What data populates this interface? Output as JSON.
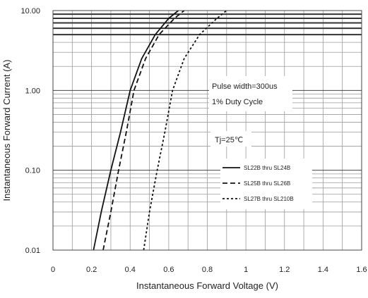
{
  "chart_data": {
    "type": "line",
    "title": "",
    "xlabel": "Instantaneous Forward Voltage (V)",
    "ylabel": "Instantaneous Forward Current (A)",
    "xlim": [
      0,
      1.6
    ],
    "ylim": [
      0.01,
      10
    ],
    "y_scale": "log",
    "grid": true,
    "x_ticks": [
      "0",
      "0.2",
      "0.4",
      "0.6",
      "0.8",
      "1",
      "1.2",
      "1.4",
      "1.6"
    ],
    "y_ticks": [
      "0.01",
      "0.10",
      "1.00",
      "10.00"
    ],
    "legend_position": "right",
    "annotations": [
      "Pulse width=300us",
      "1% Duty Cycle",
      "Tj=25℃"
    ],
    "series": [
      {
        "name": "SL22B thru SL24B",
        "style": "solid",
        "points": [
          [
            0.21,
            0.01
          ],
          [
            0.25,
            0.03
          ],
          [
            0.3,
            0.1
          ],
          [
            0.35,
            0.3
          ],
          [
            0.4,
            1.0
          ],
          [
            0.46,
            2.5
          ],
          [
            0.53,
            5.0
          ],
          [
            0.6,
            8.0
          ],
          [
            0.65,
            10.0
          ]
        ]
      },
      {
        "name": "SL25B thru SL26B",
        "style": "dashed",
        "points": [
          [
            0.26,
            0.01
          ],
          [
            0.3,
            0.03
          ],
          [
            0.34,
            0.1
          ],
          [
            0.38,
            0.3
          ],
          [
            0.42,
            1.0
          ],
          [
            0.48,
            2.5
          ],
          [
            0.55,
            5.0
          ],
          [
            0.63,
            8.0
          ],
          [
            0.68,
            10.0
          ]
        ]
      },
      {
        "name": "SL27B thru SL210B",
        "style": "dotted-dash",
        "points": [
          [
            0.47,
            0.01
          ],
          [
            0.5,
            0.03
          ],
          [
            0.54,
            0.1
          ],
          [
            0.58,
            0.3
          ],
          [
            0.62,
            1.0
          ],
          [
            0.68,
            2.5
          ],
          [
            0.76,
            5.0
          ],
          [
            0.85,
            8.0
          ],
          [
            0.9,
            10.0
          ]
        ]
      }
    ]
  }
}
